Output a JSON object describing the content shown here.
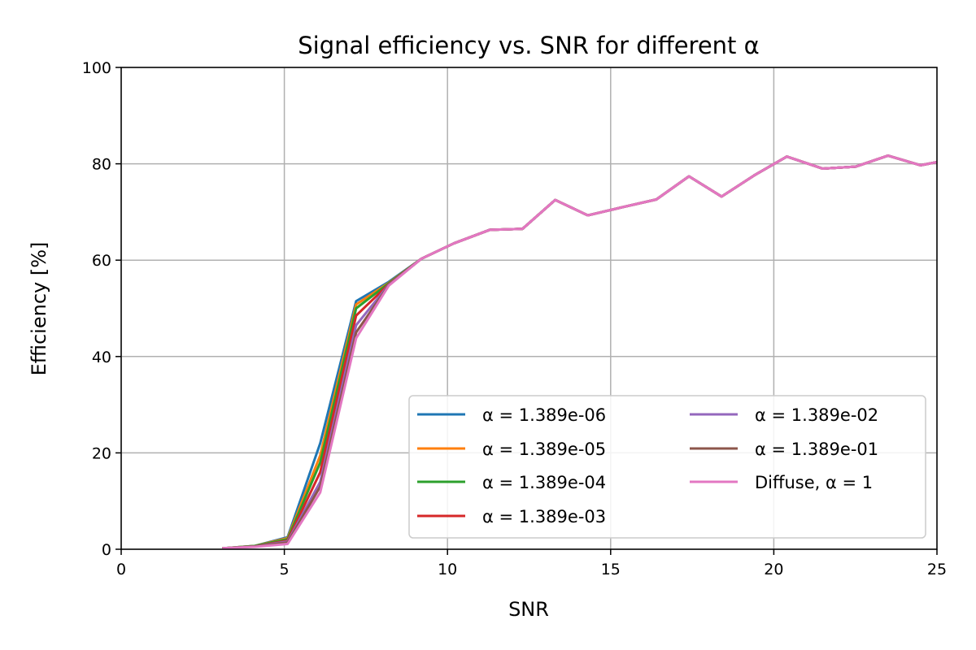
{
  "chart_data": {
    "type": "line",
    "title": "Signal efficiency vs. SNR for different α",
    "xlabel": "SNR",
    "ylabel": "Efficiency [%]",
    "xlim": [
      0,
      25
    ],
    "ylim": [
      0,
      100
    ],
    "xticks": [
      "0",
      "5",
      "10",
      "15",
      "20",
      "25"
    ],
    "yticks": [
      "0",
      "20",
      "40",
      "60",
      "80",
      "100"
    ],
    "grid": true,
    "legend": {
      "placement": "lower right",
      "columns": 2
    },
    "x": [
      3.1,
      4.1,
      5.1,
      6.1,
      7.2,
      8.2,
      9.2,
      10.2,
      11.3,
      12.3,
      13.3,
      14.3,
      15.3,
      16.4,
      17.4,
      18.4,
      19.4,
      20.4,
      21.5,
      22.5,
      23.5,
      24.5,
      25.5
    ],
    "series": [
      {
        "name": "α = 1.389e-06",
        "color": "#1f77b4",
        "values": [
          0.2,
          0.7,
          2.5,
          22.0,
          51.5,
          55.5,
          60.3,
          63.5,
          66.3,
          66.5,
          72.5,
          69.3,
          70.9,
          72.6,
          77.4,
          73.2,
          77.6,
          81.5,
          79.0,
          79.4,
          81.7,
          79.7,
          81.0
        ]
      },
      {
        "name": "α = 1.389e-05",
        "color": "#ff7f0e",
        "values": [
          0.2,
          0.7,
          2.3,
          19.5,
          50.8,
          55.3,
          60.3,
          63.5,
          66.3,
          66.5,
          72.5,
          69.3,
          70.9,
          72.6,
          77.4,
          73.2,
          77.6,
          81.5,
          79.0,
          79.4,
          81.7,
          79.7,
          81.0
        ]
      },
      {
        "name": "α = 1.389e-04",
        "color": "#2ca02c",
        "values": [
          0.2,
          0.7,
          2.1,
          18.0,
          50.0,
          55.2,
          60.3,
          63.5,
          66.3,
          66.5,
          72.5,
          69.3,
          70.9,
          72.6,
          77.4,
          73.2,
          77.6,
          81.5,
          79.0,
          79.4,
          81.7,
          79.7,
          81.0
        ]
      },
      {
        "name": "α = 1.389e-03",
        "color": "#d62728",
        "values": [
          0.2,
          0.6,
          1.8,
          16.0,
          48.5,
          55.0,
          60.3,
          63.5,
          66.3,
          66.5,
          72.5,
          69.3,
          70.9,
          72.6,
          77.4,
          73.2,
          77.6,
          81.5,
          79.0,
          79.4,
          81.7,
          79.7,
          81.0
        ]
      },
      {
        "name": "α = 1.389e-02",
        "color": "#9467bd",
        "values": [
          0.2,
          0.6,
          1.6,
          14.0,
          46.5,
          54.9,
          60.3,
          63.5,
          66.3,
          66.5,
          72.5,
          69.3,
          70.9,
          72.6,
          77.4,
          73.2,
          77.6,
          81.5,
          79.0,
          79.4,
          81.7,
          79.7,
          81.0
        ]
      },
      {
        "name": "α = 1.389e-01",
        "color": "#8c564b",
        "values": [
          0.2,
          0.6,
          1.4,
          13.0,
          45.0,
          54.8,
          60.3,
          63.5,
          66.3,
          66.5,
          72.5,
          69.3,
          70.9,
          72.6,
          77.4,
          73.2,
          77.6,
          81.5,
          79.0,
          79.4,
          81.7,
          79.7,
          81.0
        ]
      },
      {
        "name": "Diffuse, α = 1",
        "color": "#e377c2",
        "values": [
          0.2,
          0.5,
          1.1,
          11.8,
          43.8,
          54.7,
          60.3,
          63.5,
          66.3,
          66.5,
          72.5,
          69.3,
          70.9,
          72.6,
          77.4,
          73.2,
          77.6,
          81.5,
          79.0,
          79.4,
          81.7,
          79.7,
          81.0
        ]
      }
    ]
  }
}
